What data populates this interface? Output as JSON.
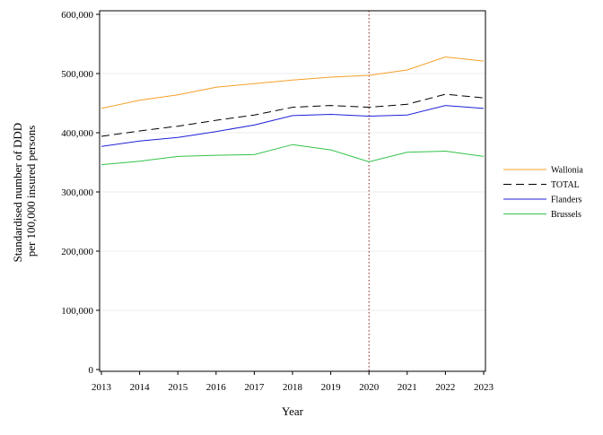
{
  "chart_data": {
    "type": "line",
    "title": "",
    "xlabel": "Year",
    "ylabel_lines": [
      "Standardised number of DDD",
      "per 100,000 insured persons"
    ],
    "x": [
      2013,
      2014,
      2015,
      2016,
      2017,
      2018,
      2019,
      2020,
      2021,
      2022,
      2023
    ],
    "xticks": [
      "2013",
      "2014",
      "2015",
      "2016",
      "2017",
      "2018",
      "2019",
      "2020",
      "2021",
      "2022",
      "2023"
    ],
    "ylim": [
      0,
      600000
    ],
    "yticks": [
      0,
      100000,
      200000,
      300000,
      400000,
      500000,
      600000
    ],
    "ytick_labels": [
      "0",
      "100,000",
      "200,000",
      "300,000",
      "400,000",
      "500,000",
      "600,000"
    ],
    "grid": true,
    "legend_position": "right",
    "reference_line": {
      "x": 2020,
      "style": "dotted",
      "color": "#8b1a1a"
    },
    "series": [
      {
        "name": "Wallonia",
        "color": "#f5a02a",
        "dash": "solid",
        "values": [
          441000,
          455000,
          464000,
          477000,
          483000,
          489000,
          494000,
          497000,
          506000,
          528000,
          521000
        ]
      },
      {
        "name": "TOTAL",
        "color": "#000000",
        "dash": "dashed",
        "values": [
          394000,
          403000,
          411000,
          421000,
          430000,
          443000,
          446000,
          443000,
          448000,
          465000,
          459000
        ]
      },
      {
        "name": "Flanders",
        "color": "#1f1fd6",
        "dash": "solid",
        "values": [
          377000,
          386000,
          392000,
          402000,
          413000,
          429000,
          431000,
          428000,
          430000,
          446000,
          441000
        ]
      },
      {
        "name": "Brussels",
        "color": "#33c24a",
        "dash": "solid",
        "values": [
          346000,
          352000,
          360000,
          362000,
          363000,
          380000,
          371000,
          351000,
          367000,
          369000,
          360000
        ]
      }
    ]
  }
}
